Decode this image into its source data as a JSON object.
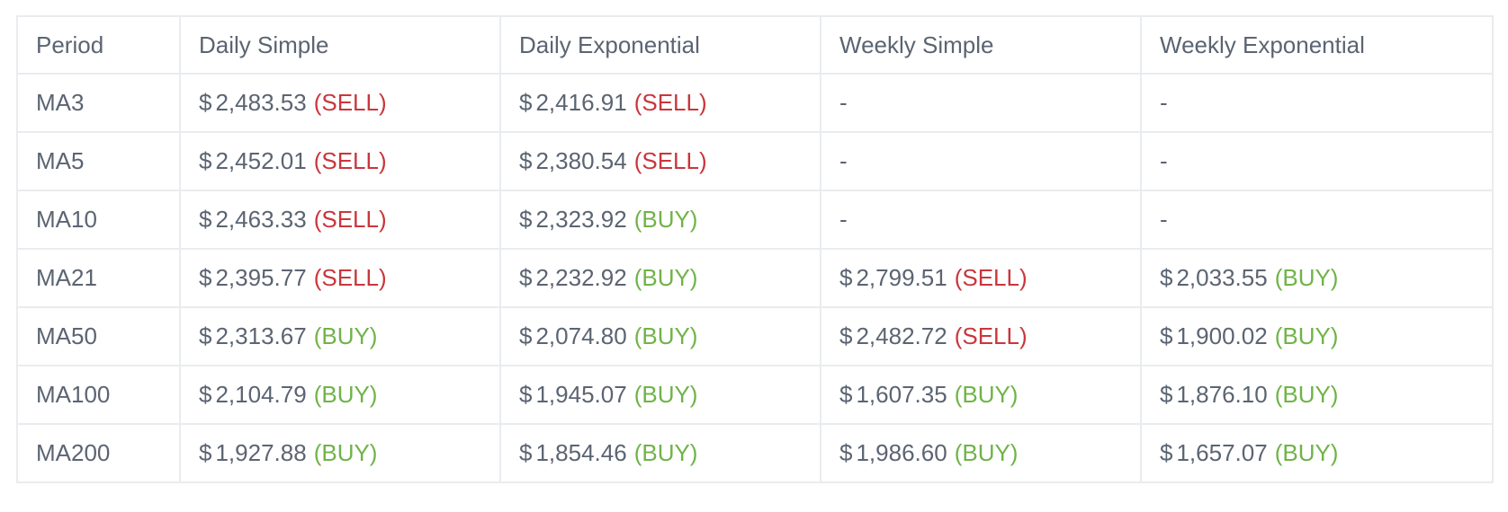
{
  "table": {
    "headers": [
      "Period",
      "Daily Simple",
      "Daily Exponential",
      "Weekly Simple",
      "Weekly Exponential"
    ],
    "currency_symbol": "$",
    "colors": {
      "sell": "#c9363c",
      "buy": "#6fb348",
      "text": "#5b6472",
      "border": "#e9ecef"
    },
    "rows": [
      {
        "period": "MA3",
        "cells": [
          {
            "price": "2,483.53",
            "signal": "(SELL)",
            "type": "sell"
          },
          {
            "price": "2,416.91",
            "signal": "(SELL)",
            "type": "sell"
          },
          {
            "text": "-"
          },
          {
            "text": "-"
          }
        ]
      },
      {
        "period": "MA5",
        "cells": [
          {
            "price": "2,452.01",
            "signal": "(SELL)",
            "type": "sell"
          },
          {
            "price": "2,380.54",
            "signal": "(SELL)",
            "type": "sell"
          },
          {
            "text": "-"
          },
          {
            "text": "-"
          }
        ]
      },
      {
        "period": "MA10",
        "cells": [
          {
            "price": "2,463.33",
            "signal": "(SELL)",
            "type": "sell"
          },
          {
            "price": "2,323.92",
            "signal": "(BUY)",
            "type": "buy"
          },
          {
            "text": "-"
          },
          {
            "text": "-"
          }
        ]
      },
      {
        "period": "MA21",
        "cells": [
          {
            "price": "2,395.77",
            "signal": "(SELL)",
            "type": "sell"
          },
          {
            "price": "2,232.92",
            "signal": "(BUY)",
            "type": "buy"
          },
          {
            "price": "2,799.51",
            "signal": "(SELL)",
            "type": "sell"
          },
          {
            "price": "2,033.55",
            "signal": "(BUY)",
            "type": "buy"
          }
        ]
      },
      {
        "period": "MA50",
        "cells": [
          {
            "price": "2,313.67",
            "signal": "(BUY)",
            "type": "buy"
          },
          {
            "price": "2,074.80",
            "signal": "(BUY)",
            "type": "buy"
          },
          {
            "price": "2,482.72",
            "signal": "(SELL)",
            "type": "sell"
          },
          {
            "price": "1,900.02",
            "signal": "(BUY)",
            "type": "buy"
          }
        ]
      },
      {
        "period": "MA100",
        "cells": [
          {
            "price": "2,104.79",
            "signal": "(BUY)",
            "type": "buy"
          },
          {
            "price": "1,945.07",
            "signal": "(BUY)",
            "type": "buy"
          },
          {
            "price": "1,607.35",
            "signal": "(BUY)",
            "type": "buy"
          },
          {
            "price": "1,876.10",
            "signal": "(BUY)",
            "type": "buy"
          }
        ]
      },
      {
        "period": "MA200",
        "cells": [
          {
            "price": "1,927.88",
            "signal": "(BUY)",
            "type": "buy"
          },
          {
            "price": "1,854.46",
            "signal": "(BUY)",
            "type": "buy"
          },
          {
            "price": "1,986.60",
            "signal": "(BUY)",
            "type": "buy"
          },
          {
            "price": "1,657.07",
            "signal": "(BUY)",
            "type": "buy"
          }
        ]
      }
    ]
  }
}
